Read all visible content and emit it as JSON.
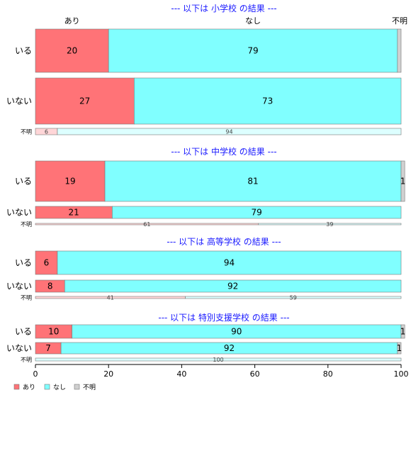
{
  "chart_data": {
    "type": "bar",
    "orientation": "horizontal",
    "stacked": "percent",
    "xlim": [
      0,
      100
    ],
    "xticks": [
      0,
      20,
      40,
      60,
      80,
      100
    ],
    "columns": [
      "あり",
      "なし",
      "不明"
    ],
    "colors": {
      "あり": "#ff7377",
      "なし": "#80ffff",
      "不明": "#d0d0d0"
    },
    "legend": {
      "position": "bottom-left",
      "entries": [
        "あり",
        "なし",
        "不明"
      ]
    },
    "panels": [
      {
        "title": "--- 以下は 小学校 の結果 ---",
        "rows": [
          {
            "label": "いる",
            "values": [
              20,
              79,
              1
            ],
            "labels": [
              "20",
              "79",
              ""
            ]
          },
          {
            "label": "いない",
            "values": [
              27,
              73,
              0
            ],
            "labels": [
              "27",
              "73",
              ""
            ]
          },
          {
            "label": "不明",
            "values": [
              6,
              94,
              0
            ],
            "labels": [
              "6",
              "94",
              ""
            ]
          }
        ]
      },
      {
        "title": "--- 以下は 中学校 の結果 ---",
        "rows": [
          {
            "label": "いる",
            "values": [
              19,
              81,
              1
            ],
            "labels": [
              "19",
              "81",
              "1"
            ]
          },
          {
            "label": "いない",
            "values": [
              21,
              79,
              0
            ],
            "labels": [
              "21",
              "79",
              ""
            ]
          },
          {
            "label": "不明",
            "values": [
              61,
              39,
              0
            ],
            "labels": [
              "61",
              "39",
              ""
            ]
          }
        ]
      },
      {
        "title": "--- 以下は 高等学校 の結果 ---",
        "rows": [
          {
            "label": "いる",
            "values": [
              6,
              94,
              0
            ],
            "labels": [
              "6",
              "94",
              ""
            ]
          },
          {
            "label": "いない",
            "values": [
              8,
              92,
              0
            ],
            "labels": [
              "8",
              "92",
              ""
            ]
          },
          {
            "label": "不明",
            "values": [
              41,
              59,
              0
            ],
            "labels": [
              "41",
              "59",
              ""
            ]
          }
        ]
      },
      {
        "title": "--- 以下は 特別支援学校 の結果 ---",
        "rows": [
          {
            "label": "いる",
            "values": [
              10,
              90,
              1
            ],
            "labels": [
              "10",
              "90",
              "1"
            ]
          },
          {
            "label": "いない",
            "values": [
              7,
              92,
              1
            ],
            "labels": [
              "7",
              "92",
              "1"
            ]
          },
          {
            "label": "不明",
            "values": [
              0,
              100,
              0
            ],
            "labels": [
              "",
              "100",
              ""
            ]
          }
        ]
      }
    ]
  }
}
